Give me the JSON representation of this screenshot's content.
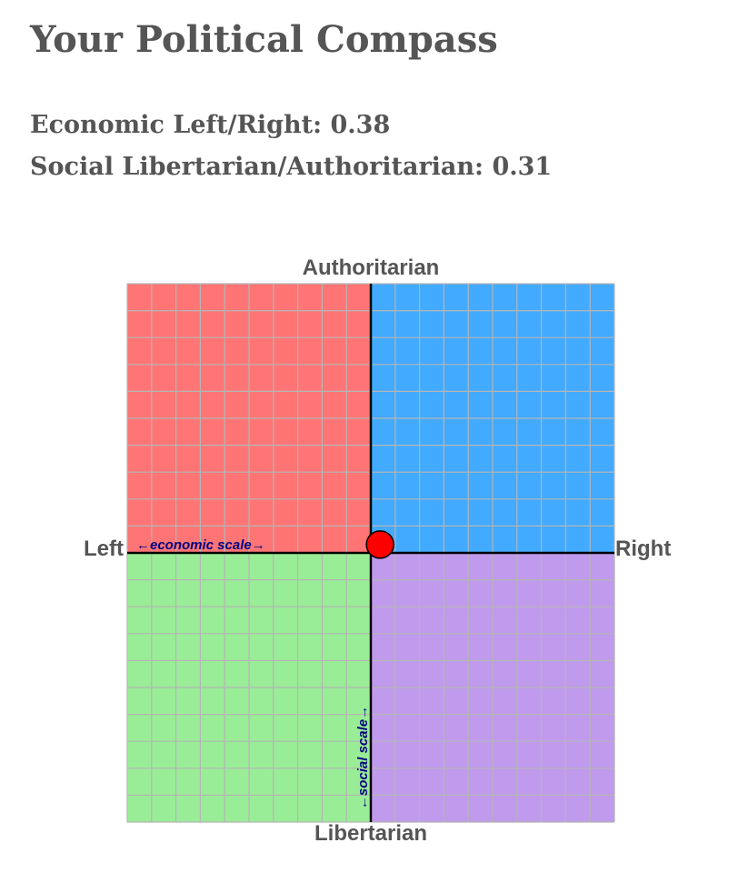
{
  "title": "Your Political Compass",
  "scores": {
    "economic": {
      "label": "Economic Left/Right:",
      "value": "0.38"
    },
    "social": {
      "label": "Social Libertarian/Authoritarian:",
      "value": "0.31"
    }
  },
  "chart_data": {
    "type": "scatter",
    "axis_labels": {
      "top": "Authoritarian",
      "bottom": "Libertarian",
      "left": "Left",
      "right": "Right"
    },
    "scale_labels": {
      "economic": "←economic scale→",
      "social": "←social scale→"
    },
    "xlim": [
      -10,
      10
    ],
    "ylim": [
      -10,
      10
    ],
    "grid": true,
    "grid_divisions": 20,
    "quadrants": [
      {
        "name": "authoritarian-left",
        "color": "#ff7575"
      },
      {
        "name": "authoritarian-right",
        "color": "#42aaff"
      },
      {
        "name": "libertarian-left",
        "color": "#9aed97"
      },
      {
        "name": "libertarian-right",
        "color": "#c09aec"
      }
    ],
    "point": {
      "x": 0.38,
      "y": 0.31,
      "color": "#ff0000"
    }
  }
}
